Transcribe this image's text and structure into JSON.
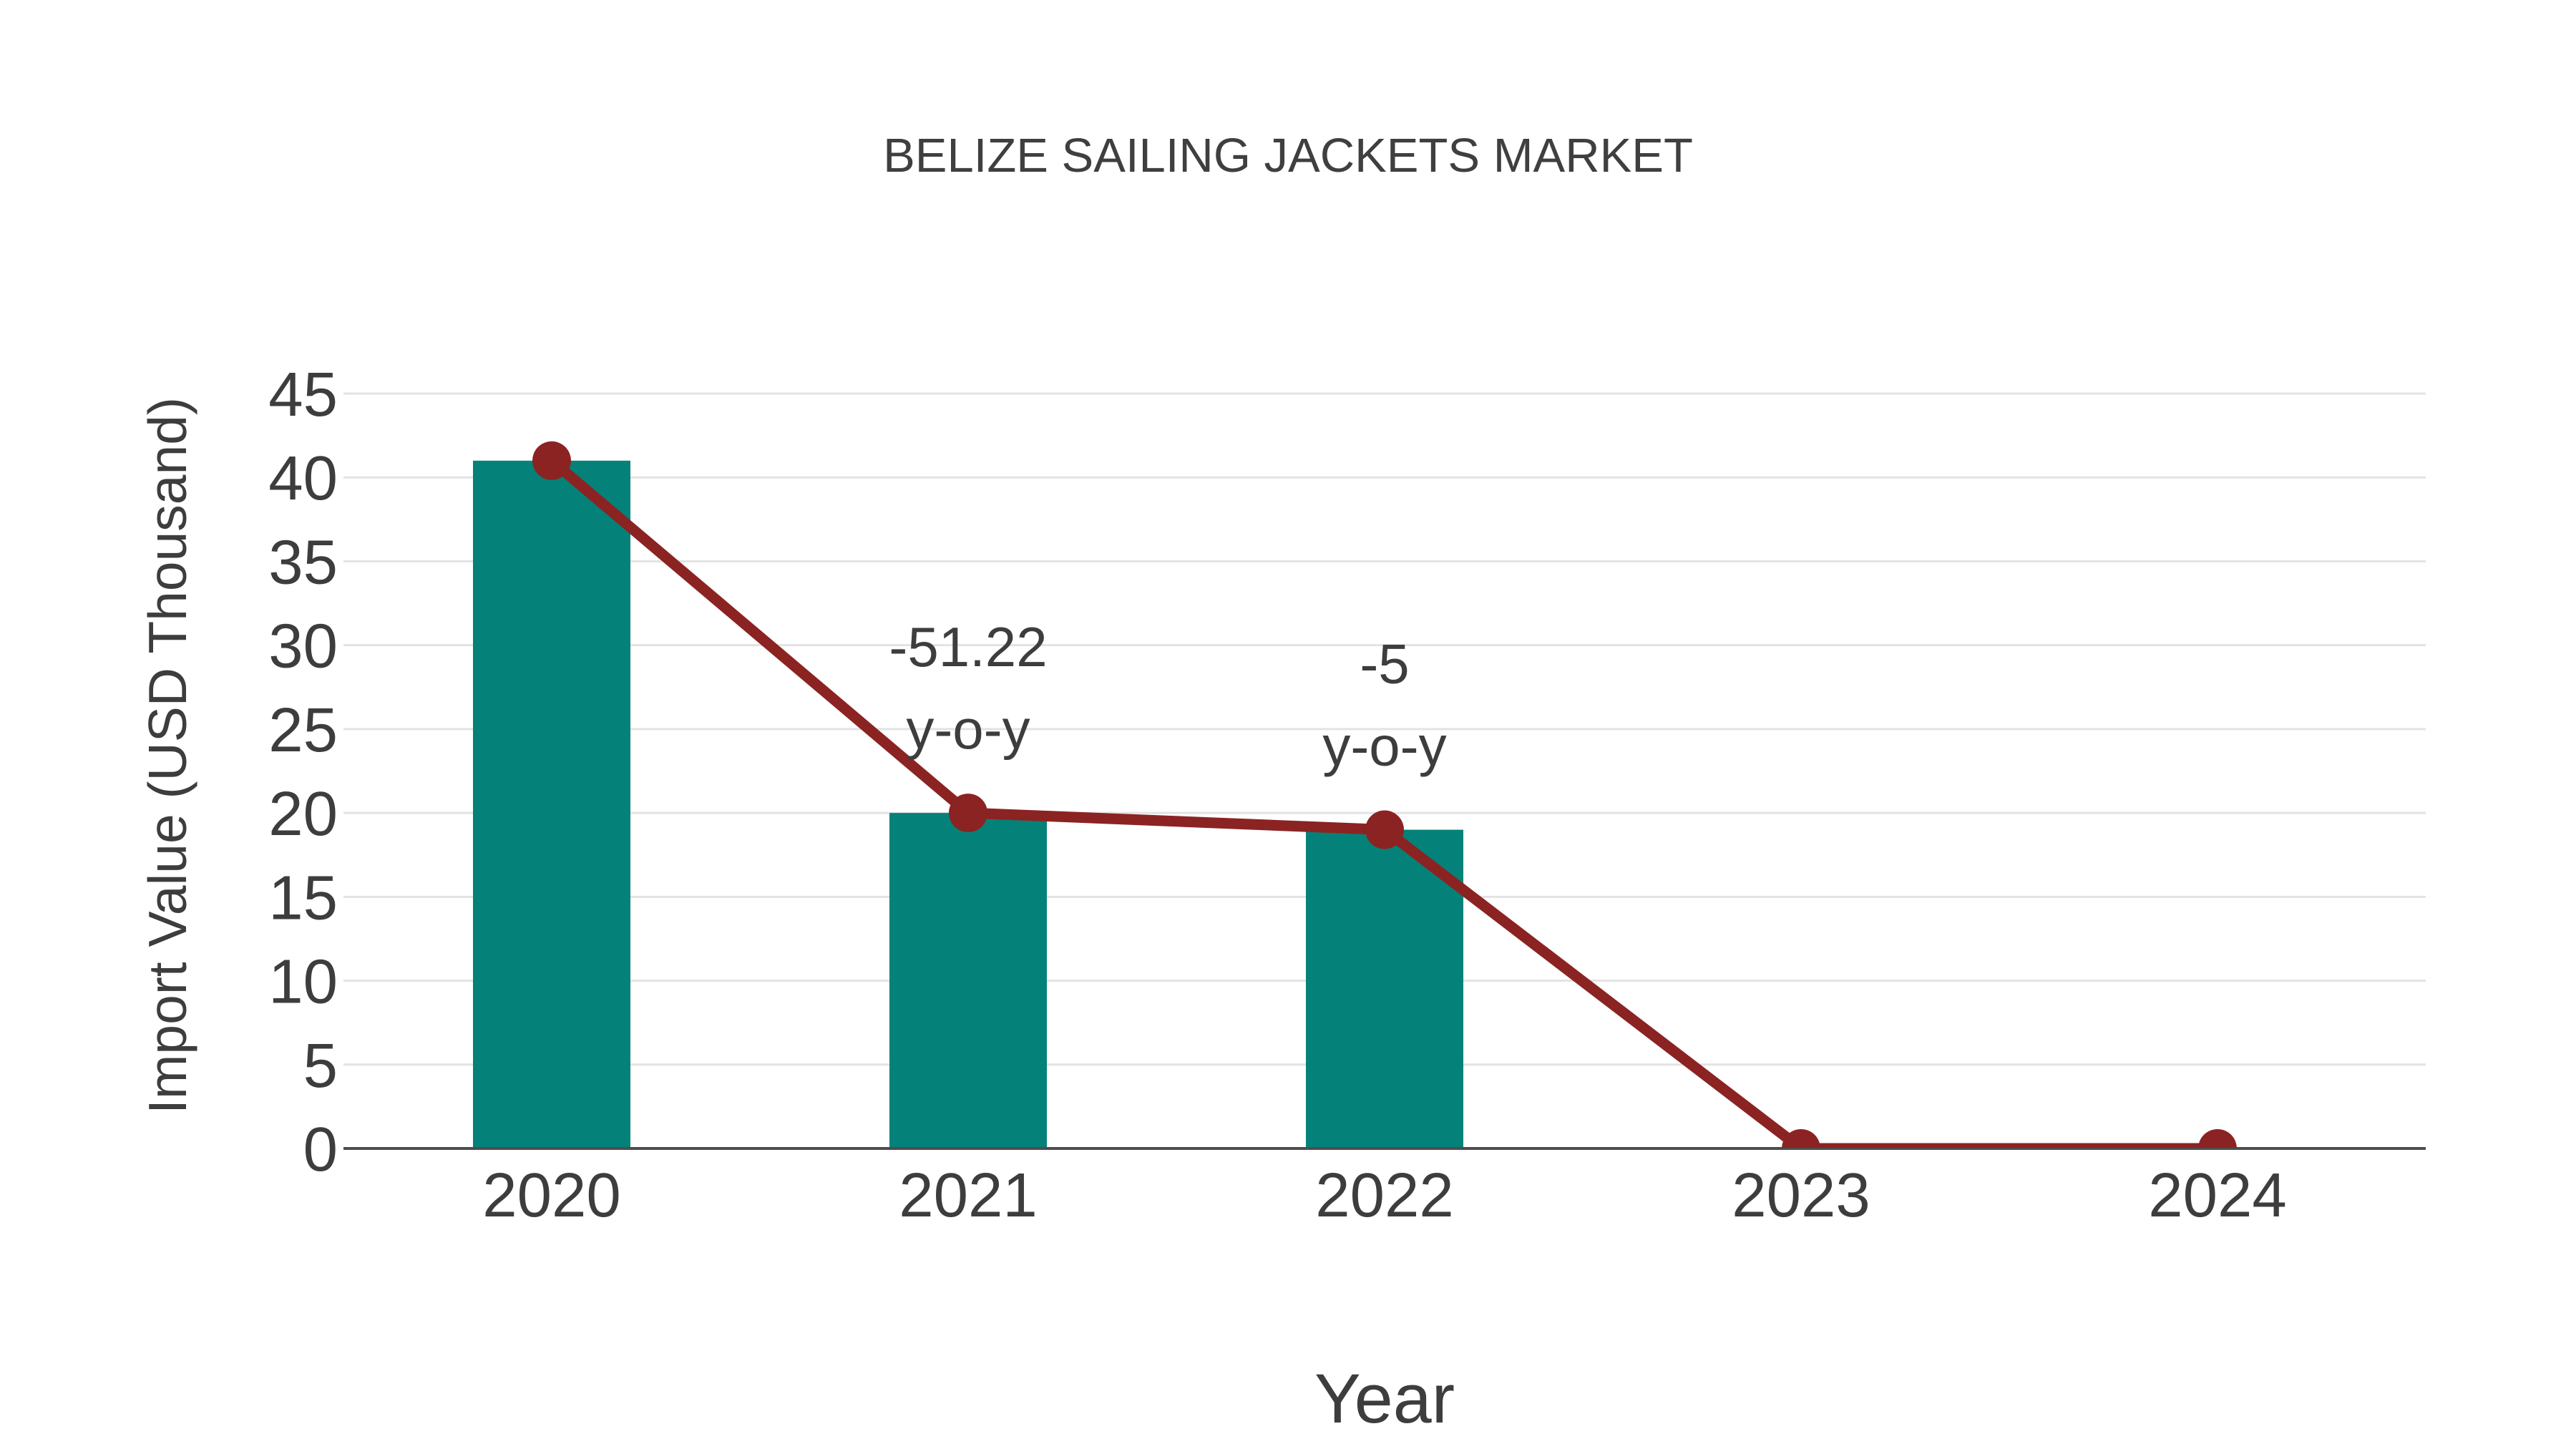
{
  "title": "BELIZE SAILING JACKETS MARKET",
  "chart_data": {
    "type": "bar",
    "title": "BELIZE SAILING JACKETS MARKET",
    "categories": [
      "2020",
      "2021",
      "2022",
      "2023",
      "2024"
    ],
    "series": [
      {
        "name": "Import Value bars",
        "type": "bar",
        "values": [
          41,
          20,
          19,
          0,
          0
        ],
        "color": "#048279"
      },
      {
        "name": "Import Value trend line",
        "type": "line",
        "values": [
          41,
          20,
          19,
          0,
          0
        ],
        "color": "#8b2323"
      }
    ],
    "annotations": [
      {
        "category": "2021",
        "lines": [
          "-51.22",
          "y-o-y"
        ]
      },
      {
        "category": "2022",
        "lines": [
          "-5",
          "y-o-y"
        ]
      }
    ],
    "xlabel": "Year",
    "ylabel": "Import Value (USD Thousand)",
    "ylim": [
      0,
      45
    ],
    "yticks": [
      0,
      5,
      10,
      15,
      20,
      25,
      30,
      35,
      40,
      45
    ],
    "grid": true,
    "legend_position": "none",
    "colors": {
      "bar": "#048279",
      "line": "#8b2323",
      "marker": "#8b2323",
      "grid": "#e3e3e3",
      "axis": "#4d4d4d",
      "text": "#3d3d3d"
    }
  }
}
